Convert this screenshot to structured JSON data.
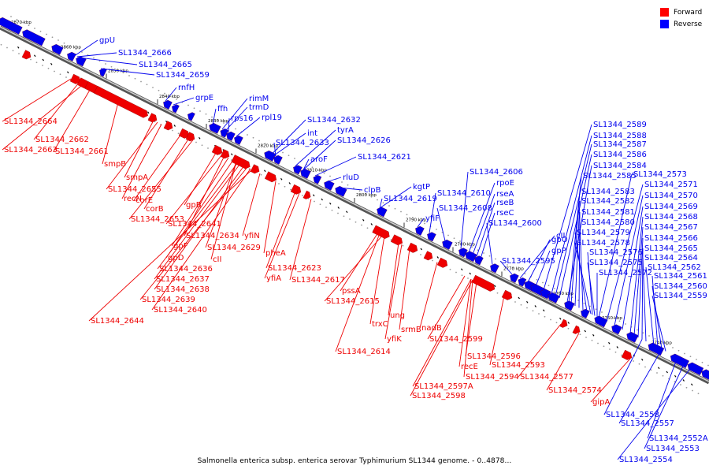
{
  "legend": {
    "forward_label": "Forward",
    "reverse_label": "Reverse",
    "forward_color": "#ff0000",
    "reverse_color": "#0000ff"
  },
  "caption": "Salmonella enterica subsp. enterica serovar Typhimurium SL1344 genome. - 0..4878...",
  "colors": {
    "forward": "#ee0000",
    "reverse": "#0000ee",
    "backbone": "#888888",
    "tick": "#000000"
  },
  "scale_ticks": [
    "2870 kbp",
    "2860 kbp",
    "2850 kbp",
    "2840 kbp",
    "2830 kbp",
    "2820 kbp",
    "2810 kbp",
    "2800 kbp",
    "2790 kbp",
    "2780 kbp",
    "2770 kbp",
    "2760 kbp",
    "2750 kbp",
    "2740 kbp"
  ],
  "reverse_labels": [
    "gpU",
    "SL1344_2666",
    "SL1344_2665",
    "SL1344_2659",
    "rnfH",
    "grpE",
    "rimM",
    "trmD",
    "ffh",
    "rps16",
    "rpl19",
    "SL1344_2632",
    "int",
    "tyrA",
    "SL1344_2633",
    "SL1344_2626",
    "aroF",
    "SL1344_2621",
    "rluD",
    "clpB",
    "kgtP",
    "SL1344_2619",
    "yfiF",
    "SL1344_2610",
    "SL1344_2608",
    "SL1344_2606",
    "rpoE",
    "rseA",
    "rseB",
    "rseC",
    "SL1344_2600",
    "SL1344_2595",
    "cII",
    "gpO",
    "gpP",
    "SL1344_2589",
    "SL1344_2588",
    "SL1344_2587",
    "SL1344_2586",
    "SL1344_2584",
    "SL1344_2585",
    "SL1344_2583",
    "SL1344_2582",
    "SL1344_2581",
    "SL1344_2580",
    "SL1344_2579",
    "SL1344_2578",
    "SL1344_2576",
    "SL1344_2575",
    "SL1344_2572",
    "SL1344_2573",
    "SL1344_2571",
    "SL1344_2570",
    "SL1344_2569",
    "SL1344_2568",
    "SL1344_2567",
    "SL1344_2566",
    "SL1344_2565",
    "SL1344_2564",
    "SL1344_2562",
    "SL1344_2561",
    "SL1344_2560",
    "SL1344_2559",
    "SL1344_2558",
    "SL1344_2557",
    "SL1344_2552A",
    "SL1344_2553",
    "SL1344_2554"
  ],
  "forward_labels": [
    "SL1344_2664",
    "SL1344_2662",
    "SL1344_2663",
    "SL1344_2661",
    "smpB",
    "smpA",
    "SL1344_2655",
    "recN",
    "corE",
    "corB",
    "SL1344_2653",
    "gpB",
    "SL1344_2641",
    "SL1344_2634",
    "gpF",
    "SL1344_2629",
    "yfiN",
    "gpD",
    "cII",
    "SL1344_2636",
    "SL1344_2637",
    "SL1344_2638",
    "SL1344_2639",
    "SL1344_2640",
    "SL1344_2644",
    "pheA",
    "SL1344_2623",
    "yfiA",
    "SL1344_2617",
    "pssA",
    "SL1344_2615",
    "trxC",
    "ung",
    "srmB",
    "yfiK",
    "SL1344_2614",
    "nadB",
    "SL1344_2599",
    "SL1344_2596",
    "recE",
    "SL1344_2594",
    "SL1344_2593",
    "SL1344_2597A",
    "SL1344_2598",
    "SL1344_2577",
    "SL1344_2574",
    "gipA"
  ]
}
